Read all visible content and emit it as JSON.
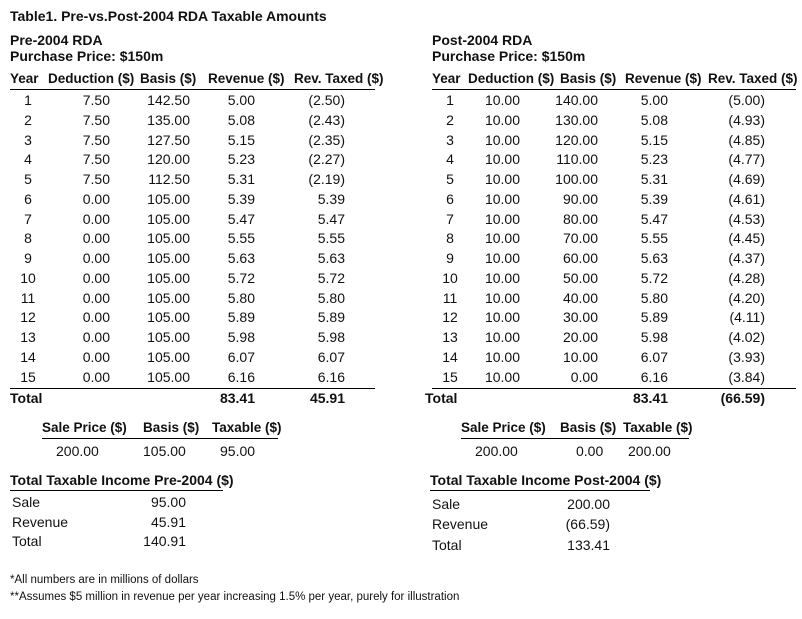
{
  "title": "Table1.  Pre-vs.Post-2004 RDA Taxable Amounts",
  "pre": {
    "heading": "Pre-2004 RDA",
    "price": "Purchase Price: $150m",
    "columns": [
      "Year",
      "Deduction ($)",
      "Basis ($)",
      "Revenue ($)",
      "Rev. Taxed ($)"
    ],
    "rows": [
      [
        "1",
        "7.50",
        "142.50",
        "5.00",
        "(2.50)"
      ],
      [
        "2",
        "7.50",
        "135.00",
        "5.08",
        "(2.43)"
      ],
      [
        "3",
        "7.50",
        "127.50",
        "5.15",
        "(2.35)"
      ],
      [
        "4",
        "7.50",
        "120.00",
        "5.23",
        "(2.27)"
      ],
      [
        "5",
        "7.50",
        "112.50",
        "5.31",
        "(2.19)"
      ],
      [
        "6",
        "0.00",
        "105.00",
        "5.39",
        "5.39"
      ],
      [
        "7",
        "0.00",
        "105.00",
        "5.47",
        "5.47"
      ],
      [
        "8",
        "0.00",
        "105.00",
        "5.55",
        "5.55"
      ],
      [
        "9",
        "0.00",
        "105.00",
        "5.63",
        "5.63"
      ],
      [
        "10",
        "0.00",
        "105.00",
        "5.72",
        "5.72"
      ],
      [
        "11",
        "0.00",
        "105.00",
        "5.80",
        "5.80"
      ],
      [
        "12",
        "0.00",
        "105.00",
        "5.89",
        "5.89"
      ],
      [
        "13",
        "0.00",
        "105.00",
        "5.98",
        "5.98"
      ],
      [
        "14",
        "0.00",
        "105.00",
        "6.07",
        "6.07"
      ],
      [
        "15",
        "0.00",
        "105.00",
        "6.16",
        "6.16"
      ]
    ],
    "total_label": "Total",
    "total_revenue": "83.41",
    "total_taxed": "45.91",
    "sale": {
      "headers": [
        "Sale Price ($)",
        "Basis ($)",
        "Taxable ($)"
      ],
      "values": [
        "200.00",
        "105.00",
        "95.00"
      ]
    },
    "income": {
      "heading": "Total Taxable Income Pre-2004 ($)",
      "rows": [
        [
          "Sale",
          "95.00"
        ],
        [
          "Revenue",
          "45.91"
        ],
        [
          "Total",
          "140.91"
        ]
      ]
    }
  },
  "post": {
    "heading": "Post-2004 RDA",
    "price": "Purchase Price: $150m",
    "columns": [
      "Year",
      "Deduction ($)",
      "Basis ($)",
      "Revenue ($)",
      "Rev. Taxed ($)"
    ],
    "rows": [
      [
        "1",
        "10.00",
        "140.00",
        "5.00",
        "(5.00)"
      ],
      [
        "2",
        "10.00",
        "130.00",
        "5.08",
        "(4.93)"
      ],
      [
        "3",
        "10.00",
        "120.00",
        "5.15",
        "(4.85)"
      ],
      [
        "4",
        "10.00",
        "110.00",
        "5.23",
        "(4.77)"
      ],
      [
        "5",
        "10.00",
        "100.00",
        "5.31",
        "(4.69)"
      ],
      [
        "6",
        "10.00",
        "90.00",
        "5.39",
        "(4.61)"
      ],
      [
        "7",
        "10.00",
        "80.00",
        "5.47",
        "(4.53)"
      ],
      [
        "8",
        "10.00",
        "70.00",
        "5.55",
        "(4.45)"
      ],
      [
        "9",
        "10.00",
        "60.00",
        "5.63",
        "(4.37)"
      ],
      [
        "10",
        "10.00",
        "50.00",
        "5.72",
        "(4.28)"
      ],
      [
        "11",
        "10.00",
        "40.00",
        "5.80",
        "(4.20)"
      ],
      [
        "12",
        "10.00",
        "30.00",
        "5.89",
        "(4.11)"
      ],
      [
        "13",
        "10.00",
        "20.00",
        "5.98",
        "(4.02)"
      ],
      [
        "14",
        "10.00",
        "10.00",
        "6.07",
        "(3.93)"
      ],
      [
        "15",
        "10.00",
        "0.00",
        "6.16",
        "(3.84)"
      ]
    ],
    "total_label": "Total",
    "total_revenue": "83.41",
    "total_taxed": "(66.59)",
    "sale": {
      "headers": [
        "Sale Price ($)",
        "Basis ($)",
        "Taxable ($)"
      ],
      "values": [
        "200.00",
        "0.00",
        "200.00"
      ]
    },
    "income": {
      "heading": "Total Taxable Income Post-2004 ($)",
      "rows": [
        [
          "Sale",
          "200.00"
        ],
        [
          "Revenue",
          "(66.59)"
        ],
        [
          "Total",
          "133.41"
        ]
      ]
    }
  },
  "footnotes": [
    "*All numbers are in millions of dollars",
    "**Assumes $5 million in revenue per year increasing 1.5% per year, purely for illustration"
  ]
}
